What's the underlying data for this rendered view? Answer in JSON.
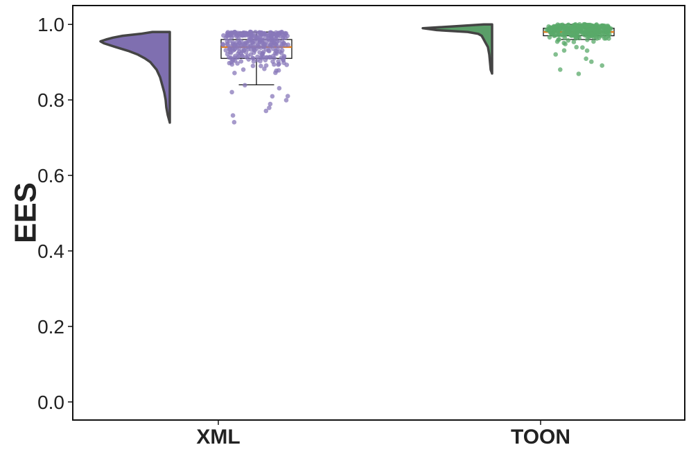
{
  "chart_data": {
    "type": "raincloud",
    "title": "",
    "xlabel": "",
    "ylabel": "EES",
    "ylim": [
      -0.048,
      1.05
    ],
    "yticks": [
      0.0,
      0.2,
      0.4,
      0.6,
      0.8,
      1.0
    ],
    "ytick_labels": [
      "0.0",
      "0.2",
      "0.4",
      "0.6",
      "0.8",
      "1.0"
    ],
    "grid": false,
    "categories": [
      "XML",
      "TOON"
    ],
    "series": [
      {
        "name": "XML",
        "color": "#8878BA",
        "cloud_color": "#7F6FB0",
        "box": {
          "q1": 0.91,
          "median": 0.94,
          "q3": 0.96,
          "whisker_low": 0.84,
          "whisker_high": 0.98
        },
        "density_range": [
          0.74,
          0.98
        ],
        "density": [
          [
            0.98,
            0.25
          ],
          [
            0.975,
            0.42
          ],
          [
            0.97,
            0.68
          ],
          [
            0.965,
            0.82
          ],
          [
            0.96,
            0.92
          ],
          [
            0.955,
            1.0
          ],
          [
            0.95,
            0.95
          ],
          [
            0.94,
            0.78
          ],
          [
            0.93,
            0.6
          ],
          [
            0.92,
            0.46
          ],
          [
            0.91,
            0.36
          ],
          [
            0.9,
            0.28
          ],
          [
            0.88,
            0.19
          ],
          [
            0.86,
            0.14
          ],
          [
            0.84,
            0.11
          ],
          [
            0.82,
            0.08
          ],
          [
            0.8,
            0.06
          ],
          [
            0.78,
            0.05
          ],
          [
            0.76,
            0.03
          ],
          [
            0.74,
            0.0
          ]
        ],
        "points": {
          "n": 300,
          "min": 0.74,
          "max": 0.98,
          "center": 0.955,
          "spread": 0.035,
          "outliers": [
            0.74,
            0.76,
            0.77,
            0.78,
            0.79,
            0.8,
            0.81,
            0.82,
            0.83,
            0.81,
            0.84
          ]
        }
      },
      {
        "name": "TOON",
        "color": "#5AA96A",
        "cloud_color": "#5A9E68",
        "box": {
          "q1": 0.97,
          "median": 0.98,
          "q3": 0.99,
          "whisker_low": 0.96,
          "whisker_high": 1.0
        },
        "density_range": [
          0.87,
          1.0
        ],
        "density": [
          [
            1.0,
            0.12
          ],
          [
            0.995,
            0.55
          ],
          [
            0.99,
            1.0
          ],
          [
            0.985,
            0.8
          ],
          [
            0.98,
            0.35
          ],
          [
            0.975,
            0.2
          ],
          [
            0.97,
            0.15
          ],
          [
            0.96,
            0.12
          ],
          [
            0.95,
            0.09
          ],
          [
            0.94,
            0.06
          ],
          [
            0.93,
            0.05
          ],
          [
            0.92,
            0.04
          ],
          [
            0.91,
            0.035
          ],
          [
            0.9,
            0.03
          ],
          [
            0.89,
            0.025
          ],
          [
            0.88,
            0.02
          ],
          [
            0.87,
            0.0
          ]
        ],
        "points": {
          "n": 300,
          "min": 0.87,
          "max": 1.0,
          "center": 0.985,
          "spread": 0.012,
          "outliers": [
            0.87,
            0.88,
            0.89,
            0.9,
            0.91,
            0.92,
            0.93,
            0.93,
            0.94,
            0.94
          ]
        }
      }
    ],
    "median_color": "#E07B1A",
    "outline_color": "#444444"
  }
}
